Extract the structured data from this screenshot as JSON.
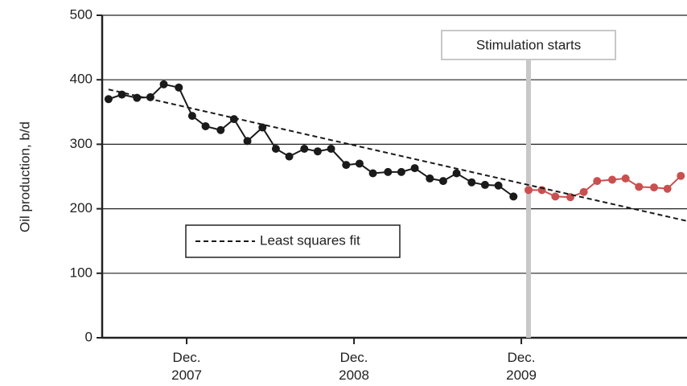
{
  "chart_data": {
    "type": "line",
    "ylabel": "Oil production, b/d",
    "xlim": [
      2007.412,
      2010.907
    ],
    "ylim": [
      0,
      500
    ],
    "yticks": [
      0,
      100,
      200,
      300,
      400,
      500
    ],
    "xticks": [
      {
        "value": 2007.917,
        "label": "Dec. 2007"
      },
      {
        "value": 2008.917,
        "label": "Dec. 2008"
      },
      {
        "value": 2009.917,
        "label": "Dec. 2009"
      }
    ],
    "grid": true,
    "legend": "lower left",
    "series": [
      {
        "color": "#1a1a1a",
        "marker": true,
        "x": [
          2007.45,
          2007.53,
          2007.62,
          2007.7,
          2007.78,
          2007.87,
          2007.95,
          2008.03,
          2008.12,
          2008.2,
          2008.28,
          2008.37,
          2008.45,
          2008.53,
          2008.62,
          2008.7,
          2008.78,
          2008.87,
          2008.95,
          2009.03,
          2009.12,
          2009.2,
          2009.28,
          2009.37,
          2009.45,
          2009.53,
          2009.62,
          2009.7,
          2009.78,
          2009.87
        ],
        "values": [
          370,
          377,
          372,
          373,
          393,
          388,
          344,
          328,
          322,
          339,
          305,
          326,
          293,
          281,
          293,
          289,
          293,
          268,
          270,
          255,
          257,
          257,
          263,
          247,
          243,
          255,
          241,
          237,
          236,
          219
        ]
      },
      {
        "color": "#c9504f",
        "marker": true,
        "x": [
          2009.96,
          2010.04,
          2010.12,
          2010.21,
          2010.29,
          2010.37,
          2010.46,
          2010.54,
          2010.62,
          2010.71,
          2010.79,
          2010.87
        ],
        "values": [
          229,
          229,
          219,
          218,
          226,
          243,
          245,
          247,
          234,
          233,
          231,
          251
        ]
      },
      {
        "name": "Least squares fit",
        "color": "#1a1a1a",
        "dash": true,
        "marker": false,
        "x": [
          2007.45,
          2010.907
        ],
        "values": [
          385,
          181
        ]
      }
    ],
    "annotations": [
      {
        "text": "Stimulation starts",
        "x": 2009.96
      }
    ]
  }
}
